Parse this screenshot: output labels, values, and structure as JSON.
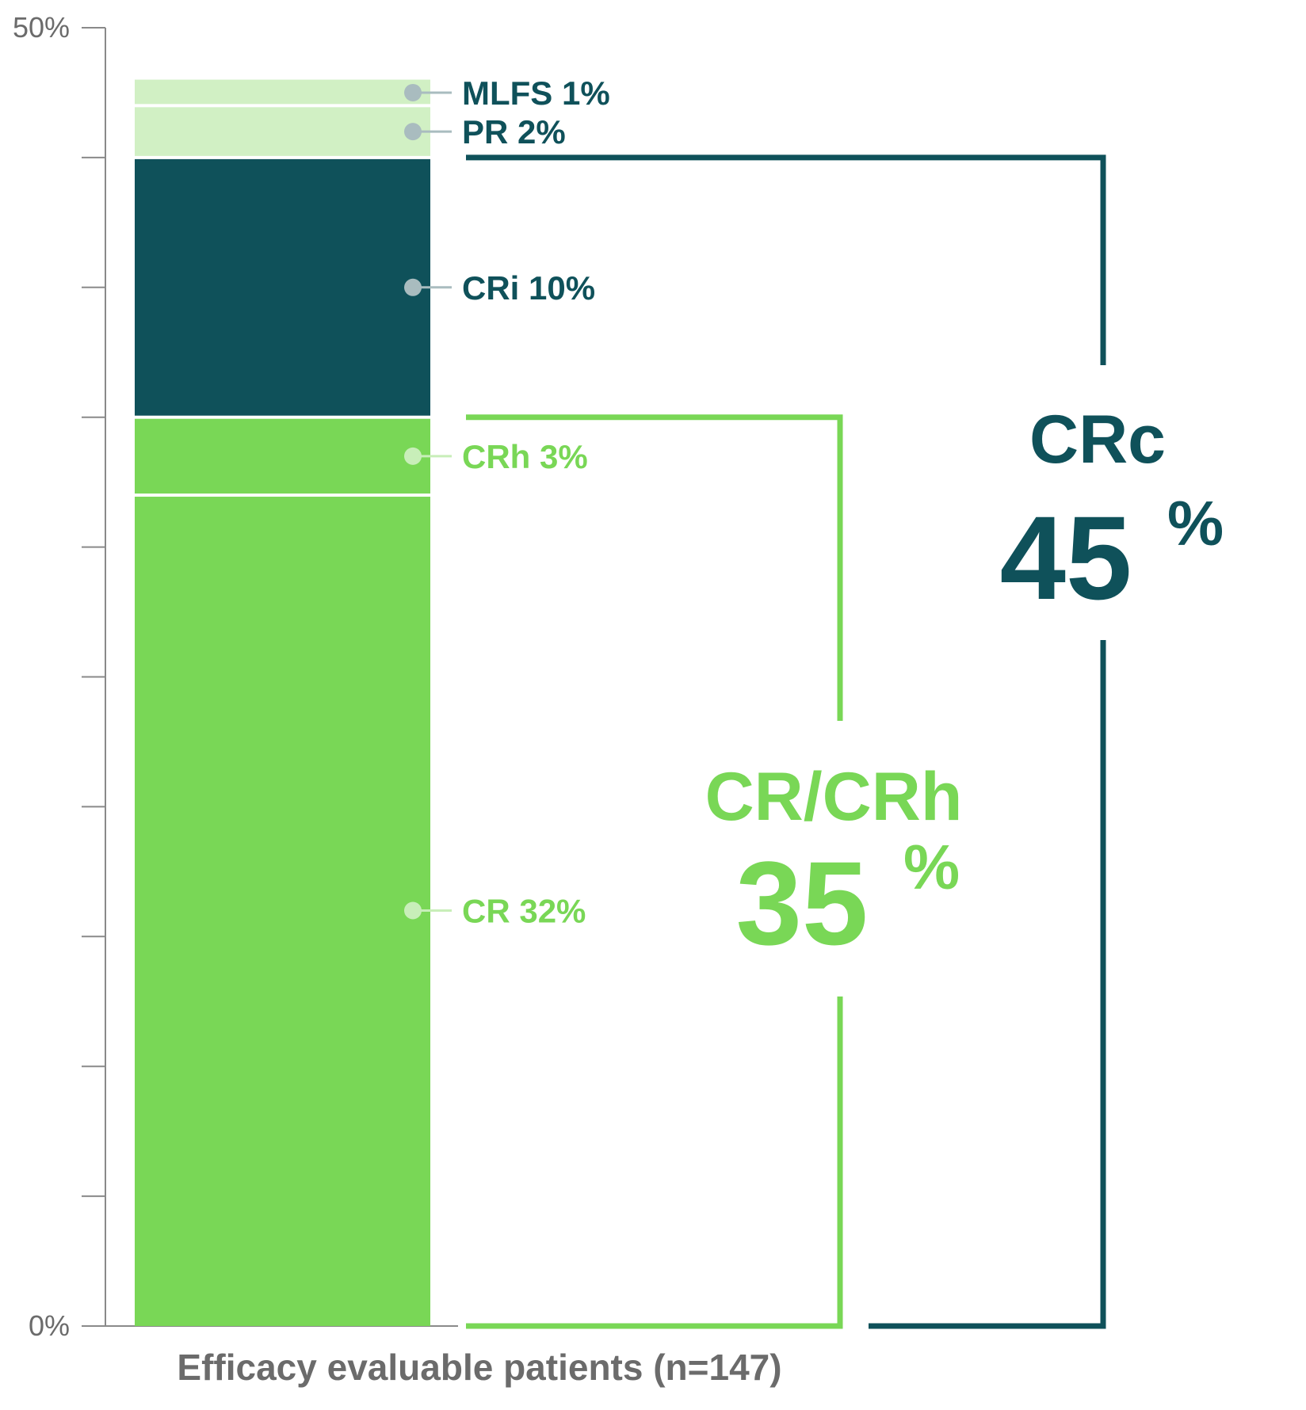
{
  "chart_data": {
    "type": "bar",
    "stacked": true,
    "categories": [
      "Efficacy evaluable patients (n=147)"
    ],
    "xlabel": "Efficacy evaluable patients (n=147)",
    "ylabel": "",
    "ylim": [
      0,
      50
    ],
    "y_tick_labels": [
      "0%",
      "50%"
    ],
    "y_ticks_every": 5,
    "grid": false,
    "series": [
      {
        "name": "CR",
        "label": "CR 32%",
        "value": 32,
        "color": "#79d756",
        "label_color": "#79d756",
        "dot_color": "#c8eeb9"
      },
      {
        "name": "CRh",
        "label": "CRh 3%",
        "value": 3,
        "color": "#79d756",
        "label_color": "#79d756",
        "dot_color": "#c8eeb9"
      },
      {
        "name": "CRi",
        "label": "CRi 10%",
        "value": 10,
        "color": "#0f515a",
        "label_color": "#0f515a",
        "dot_color": "#a9bcbf"
      },
      {
        "name": "PR",
        "label": "PR 2%",
        "value": 2,
        "color": "#d1f0c4",
        "label_color": "#0f515a",
        "dot_color": "#a9bcbf"
      },
      {
        "name": "MLFS",
        "label": "MLFS 1%",
        "value": 1,
        "color": "#d1f0c4",
        "label_color": "#0f515a",
        "dot_color": "#a9bcbf"
      }
    ],
    "brackets": [
      {
        "name": "CR/CRh",
        "value_text": "35",
        "unit": "%",
        "from": 0,
        "to": 35,
        "color": "#79d756"
      },
      {
        "name": "CRc",
        "value_text": "45",
        "unit": "%",
        "from": 0,
        "to": 45,
        "color": "#0f515a"
      }
    ]
  }
}
